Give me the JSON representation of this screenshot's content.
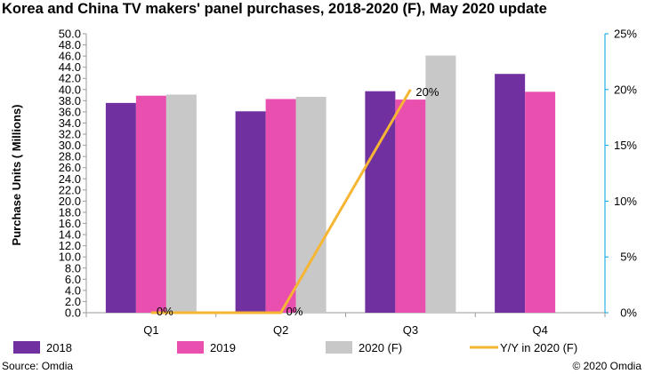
{
  "title": "Korea and China TV makers' panel purchases, 2018-2020 (F), May 2020 update",
  "footer": {
    "source": "Source: Omdia",
    "copyright": "© 2020 Omdia"
  },
  "colors": {
    "s2018": "#7030A0",
    "s2019": "#E94FAE",
    "s2020": "#C8C8C8",
    "yoy": "#F6B533",
    "axis_right": "#00A2E8"
  },
  "chart_data": {
    "type": "bar",
    "title": "Korea and China TV makers' panel purchases, 2018-2020 (F), May 2020 update",
    "categories": [
      "Q1",
      "Q2",
      "Q3",
      "Q4"
    ],
    "ylabel": "Purchase Units ( Millions)",
    "ylim": [
      0,
      50
    ],
    "yticks": [
      "0.0",
      "2.0",
      "4.0",
      "6.0",
      "8.0",
      "10.0",
      "12.0",
      "14.0",
      "16.0",
      "18.0",
      "20.0",
      "22.0",
      "24.0",
      "26.0",
      "28.0",
      "30.0",
      "32.0",
      "34.0",
      "36.0",
      "38.0",
      "40.0",
      "42.0",
      "44.0",
      "46.0",
      "48.0",
      "50.0"
    ],
    "y2lim": [
      0,
      25
    ],
    "y2ticks": [
      "0%",
      "5%",
      "10%",
      "15%",
      "20%",
      "25%"
    ],
    "series": [
      {
        "name": "2018",
        "type": "bar",
        "values": [
          37.6,
          36.1,
          39.7,
          42.8
        ]
      },
      {
        "name": "2019",
        "type": "bar",
        "values": [
          38.9,
          38.3,
          38.2,
          39.6
        ]
      },
      {
        "name": "2020 (F)",
        "type": "bar",
        "values": [
          39.1,
          38.7,
          46.1,
          null
        ]
      },
      {
        "name": "Y/Y in 2020 (F)",
        "type": "line",
        "axis": "right",
        "values": [
          0,
          0,
          20,
          null
        ],
        "labels": [
          "0%",
          "0%",
          "20%",
          null
        ]
      }
    ],
    "legend": "bottom",
    "grid": false
  }
}
